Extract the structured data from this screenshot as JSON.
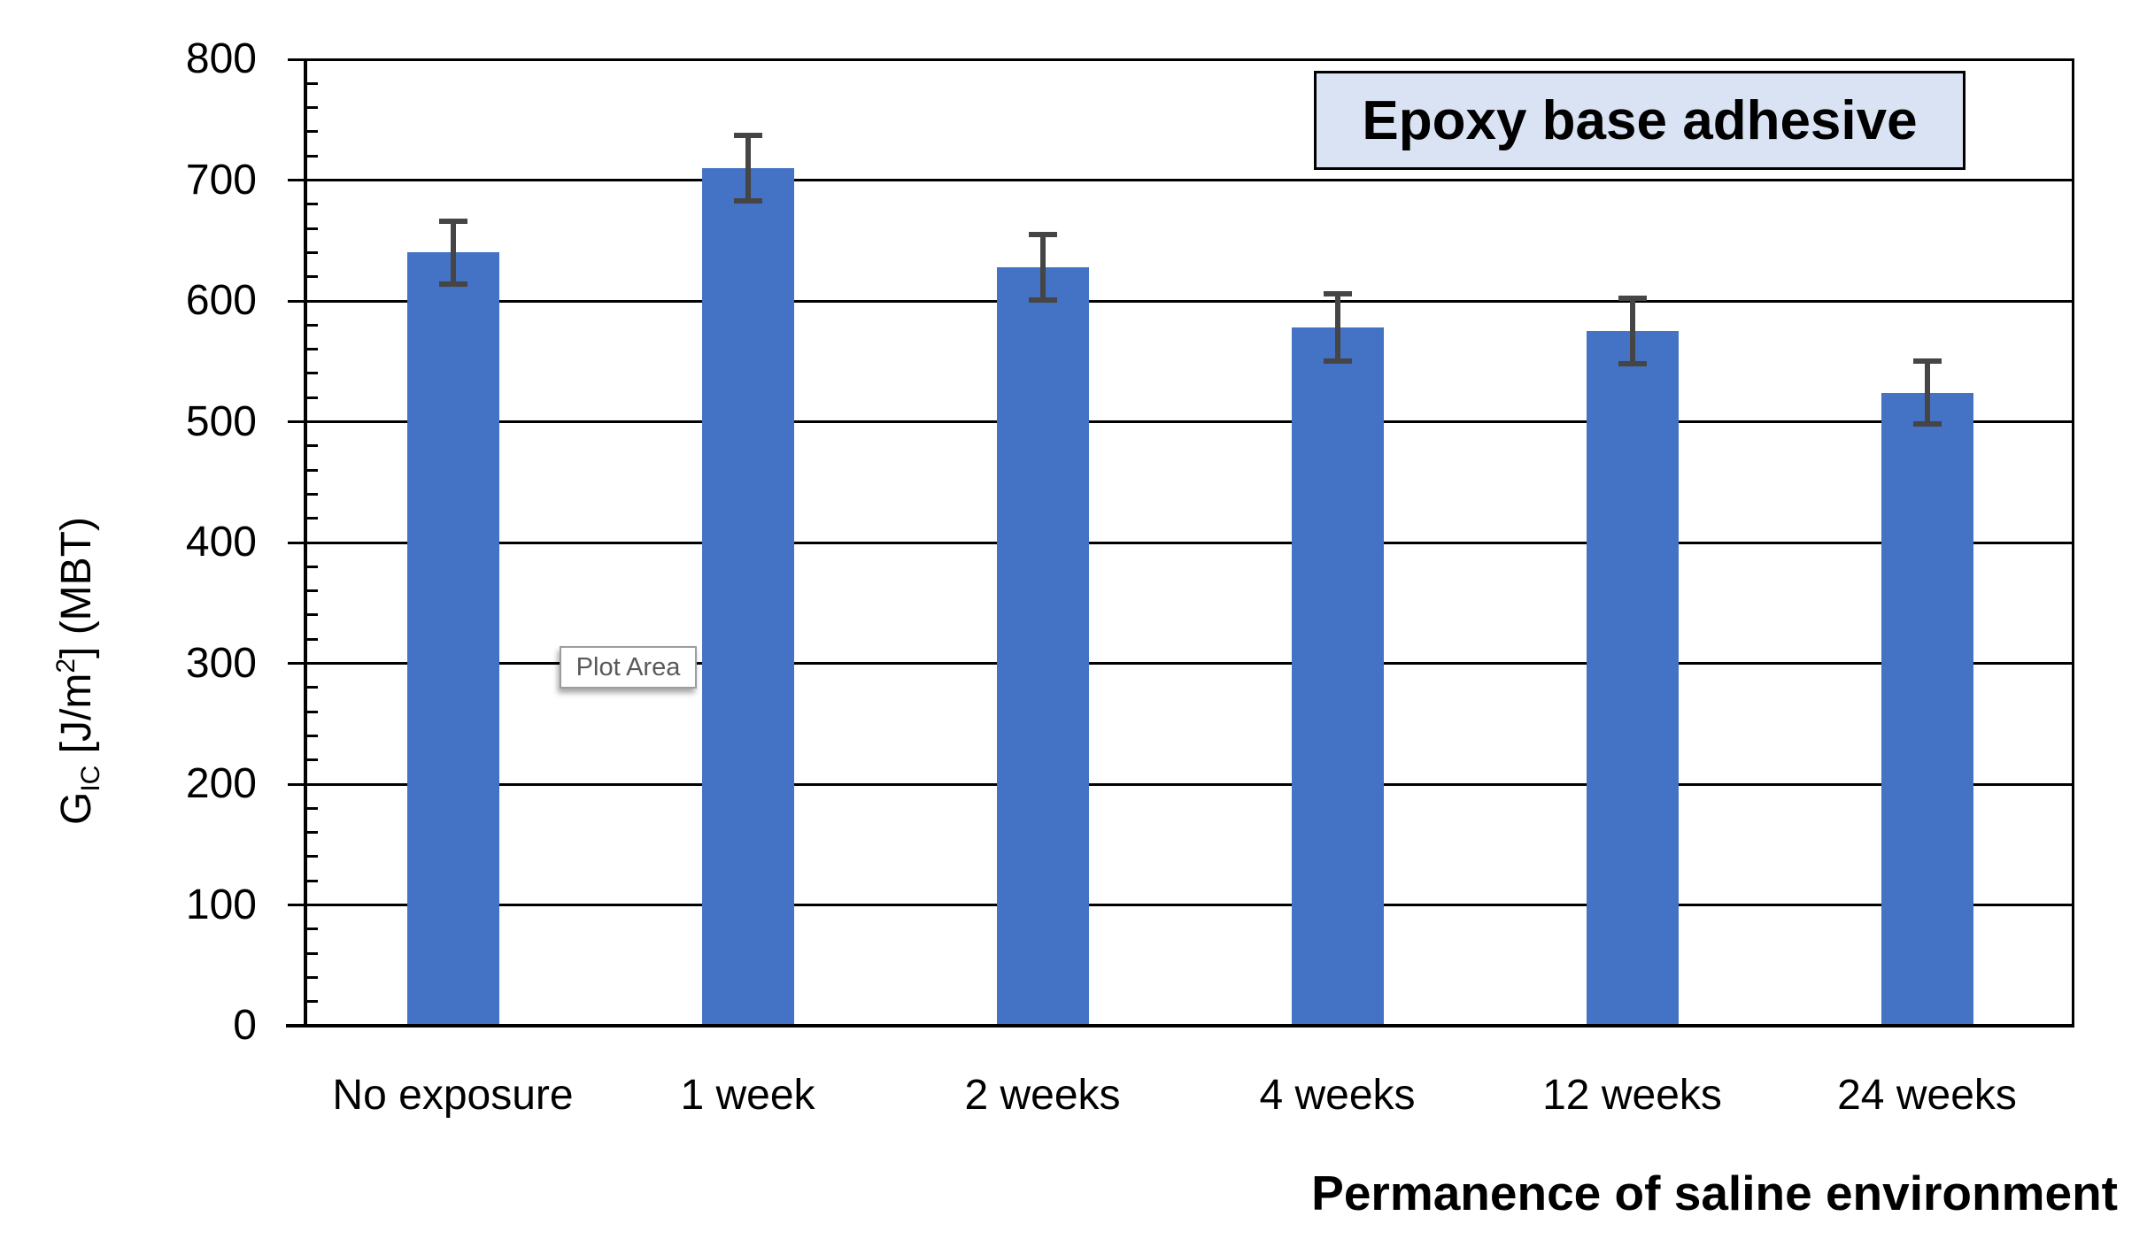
{
  "chart_data": {
    "type": "bar",
    "title": "Epoxy base adhesive",
    "xlabel": "Permanence of saline environment",
    "ylabel": "G_IC [J/m2] (MBT)",
    "ylabel_parts": {
      "g": "G",
      "sub": "IC",
      "mid": " [J/m",
      "sup": "2",
      "end": "] (MBT)"
    },
    "categories": [
      "No exposure",
      "1 week",
      "2 weeks",
      "4 weeks",
      "12 weeks",
      "24 weeks"
    ],
    "series": [
      {
        "name": "GIC MBT",
        "values": [
          640,
          710,
          628,
          578,
          575,
          524
        ],
        "errors": [
          26,
          27,
          27,
          28,
          27,
          26
        ]
      }
    ],
    "ylim": [
      0,
      800
    ],
    "ytick_step": 100,
    "yminor_step": 20,
    "yticks": [
      0,
      100,
      200,
      300,
      400,
      500,
      600,
      700,
      800
    ],
    "grid": true,
    "legend": false
  },
  "annotations": {
    "plot_area_tooltip": "Plot Area"
  },
  "colors": {
    "bar": "#4472C4",
    "error_bar": "#454545",
    "gridline": "#000000",
    "title_box_bg": "#DAE3F3",
    "title_box_border": "#000000",
    "tooltip_text": "#595959",
    "tooltip_border": "#9D9D9D"
  }
}
